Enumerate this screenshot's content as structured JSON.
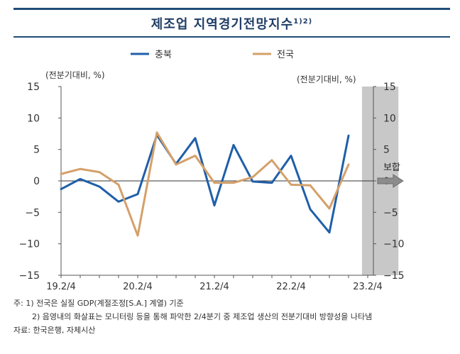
{
  "header": {
    "title": "제조업 지역경기전망지수",
    "title_sup": "1)2)"
  },
  "chart_data": {
    "type": "line",
    "title": "제조업 지역경기전망지수",
    "unit_left": "(전분기대비, %)",
    "unit_right": "(전분기대비, %)",
    "ylim": [
      -15,
      15
    ],
    "yticks": [
      "15",
      "10",
      "5",
      "0",
      "−5",
      "−10",
      "−15"
    ],
    "ytick_values": [
      15,
      10,
      5,
      0,
      -5,
      -10,
      -15
    ],
    "x_tick_labels": [
      "19.2/4",
      "20.2/4",
      "21.2/4",
      "22.2/4",
      "23.2/4"
    ],
    "x_tick_index": [
      0,
      4,
      8,
      12,
      16
    ],
    "x_count": 17,
    "legend_position": "top",
    "forecast_band": {
      "from_index": 15.7,
      "to_index": 17.6,
      "color": "#c8c8c8"
    },
    "arrow_label": "보합",
    "series": [
      {
        "name": "충북",
        "color": "#1f5fa8",
        "values": [
          -1.3,
          0.3,
          -0.9,
          -3.3,
          -2.1,
          7.3,
          2.7,
          6.8,
          -3.9,
          5.7,
          -0.1,
          -0.3,
          4.0,
          -4.5,
          -8.2,
          7.2
        ]
      },
      {
        "name": "전국",
        "color": "#d4a06a",
        "values": [
          1.1,
          1.9,
          1.4,
          -0.6,
          -8.7,
          7.7,
          2.6,
          4.0,
          -0.3,
          -0.3,
          0.6,
          3.3,
          -0.6,
          -0.7,
          -4.4,
          2.6
        ]
      }
    ]
  },
  "notes": {
    "line1": "주:  1) 전국은 실질 GDP(계절조정[S.A.] 계열) 기준",
    "line2": "2) 음영내의 화살표는 모니터링 등을 통해 파악한 2/4분기 중 제조업 생산의 전분기대비 방향성을 나타냄",
    "source": "자료: 한국은행, 자체시산"
  }
}
